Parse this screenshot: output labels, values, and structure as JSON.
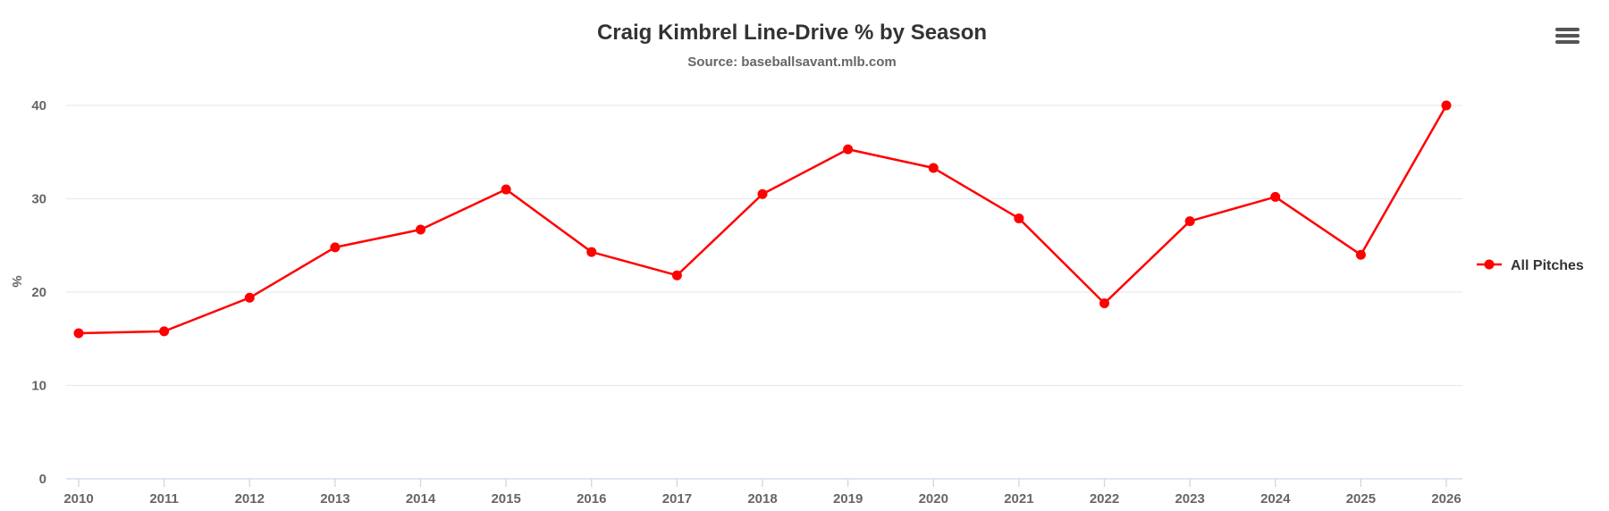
{
  "chart_data": {
    "type": "line",
    "title": "Craig Kimbrel Line-Drive % by Season",
    "subtitle": "Source: baseballsavant.mlb.com",
    "xlabel": "",
    "ylabel": "%",
    "categories": [
      "2010",
      "2011",
      "2012",
      "2013",
      "2014",
      "2015",
      "2016",
      "2017",
      "2018",
      "2019",
      "2020",
      "2021",
      "2022",
      "2023",
      "2024",
      "2025",
      "2026"
    ],
    "series": [
      {
        "name": "All Pitches",
        "color": "#ff0000",
        "values": [
          15.6,
          15.8,
          19.4,
          24.8,
          26.7,
          31.0,
          24.3,
          21.8,
          30.5,
          35.3,
          33.3,
          27.9,
          18.8,
          27.6,
          30.2,
          24.0,
          40.0
        ]
      }
    ],
    "ylim": [
      0,
      40
    ],
    "yticks": [
      0,
      10,
      20,
      30,
      40
    ],
    "grid": true,
    "legend_position": "right"
  },
  "colors": {
    "series": "#ff0000",
    "grid": "#e6e9ee",
    "axis_text": "#666666",
    "title": "#333333"
  },
  "icons": {
    "menu": "hamburger-menu-icon"
  }
}
